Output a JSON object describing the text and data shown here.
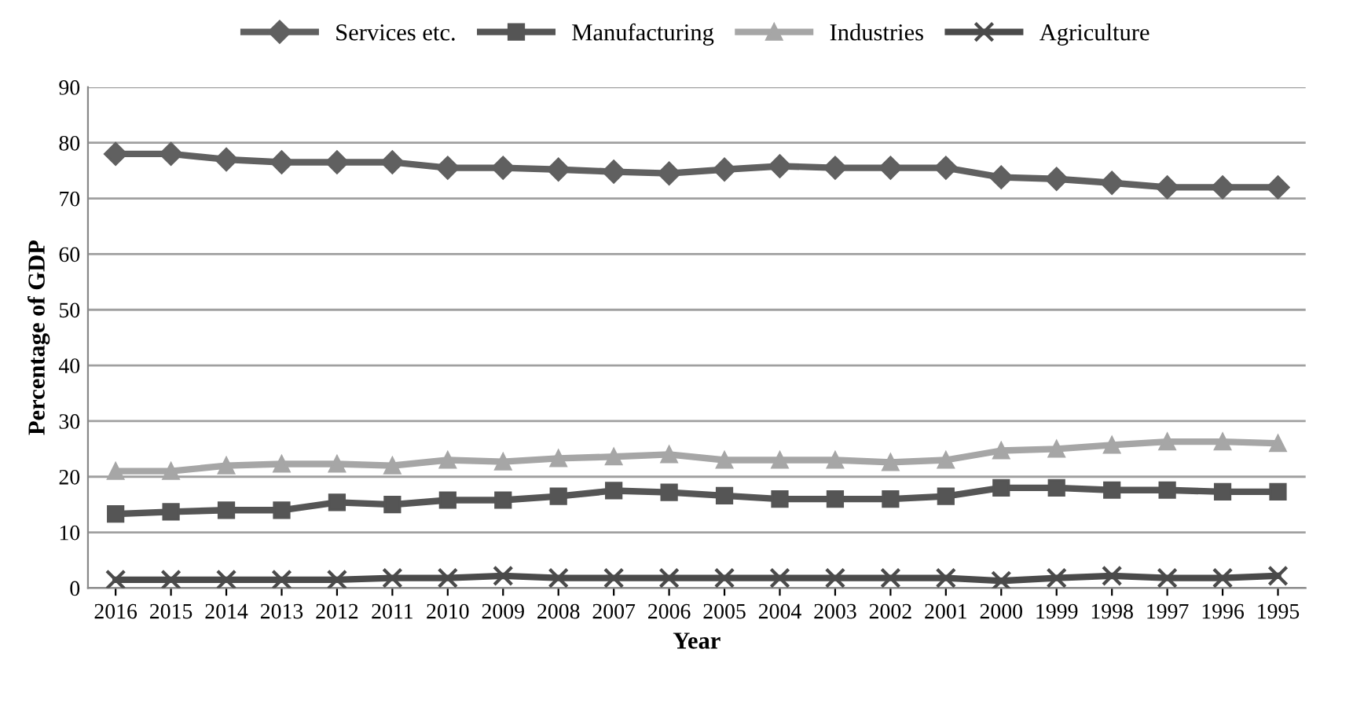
{
  "chart_data": {
    "type": "line",
    "xlabel": "Year",
    "ylabel": "Percentage of GDP",
    "categories": [
      "2016",
      "2015",
      "2014",
      "2013",
      "2012",
      "2011",
      "2010",
      "2009",
      "2008",
      "2007",
      "2006",
      "2005",
      "2004",
      "2003",
      "2002",
      "2001",
      "2000",
      "1999",
      "1998",
      "1997",
      "1996",
      "1995"
    ],
    "series": [
      {
        "name": "Services etc.",
        "color": "#606060",
        "marker": "diamond",
        "values": [
          78,
          78,
          77,
          76.5,
          76.5,
          76.5,
          75.5,
          75.5,
          75.2,
          74.8,
          74.5,
          75.2,
          75.8,
          75.5,
          75.5,
          75.5,
          73.8,
          73.5,
          72.8,
          72,
          72,
          72
        ]
      },
      {
        "name": "Manufacturing",
        "color": "#555555",
        "marker": "square",
        "values": [
          13.3,
          13.7,
          14,
          14,
          15.4,
          15,
          15.8,
          15.8,
          16.5,
          17.5,
          17.2,
          16.6,
          16,
          16,
          16,
          16.5,
          18,
          18,
          17.6,
          17.6,
          17.3,
          17.3
        ]
      },
      {
        "name": "Industries",
        "color": "#a6a6a6",
        "marker": "triangle",
        "values": [
          21,
          21,
          22,
          22.3,
          22.3,
          22,
          23,
          22.7,
          23.3,
          23.6,
          24,
          23,
          23,
          23,
          22.6,
          23,
          24.7,
          25,
          25.7,
          26.3,
          26.3,
          26
        ]
      },
      {
        "name": "Agriculture",
        "color": "#4a4a4a",
        "marker": "cross",
        "values": [
          1.5,
          1.5,
          1.5,
          1.5,
          1.5,
          1.8,
          1.8,
          2.2,
          1.8,
          1.8,
          1.8,
          1.8,
          1.8,
          1.8,
          1.8,
          1.8,
          1.3,
          1.8,
          2.2,
          1.8,
          1.8,
          2.2
        ]
      }
    ],
    "ylim": [
      0,
      90
    ],
    "yticks": [
      0,
      10,
      20,
      30,
      40,
      50,
      60,
      70,
      80,
      90
    ],
    "grid": "y",
    "legend": "top",
    "line_style": "solid"
  }
}
